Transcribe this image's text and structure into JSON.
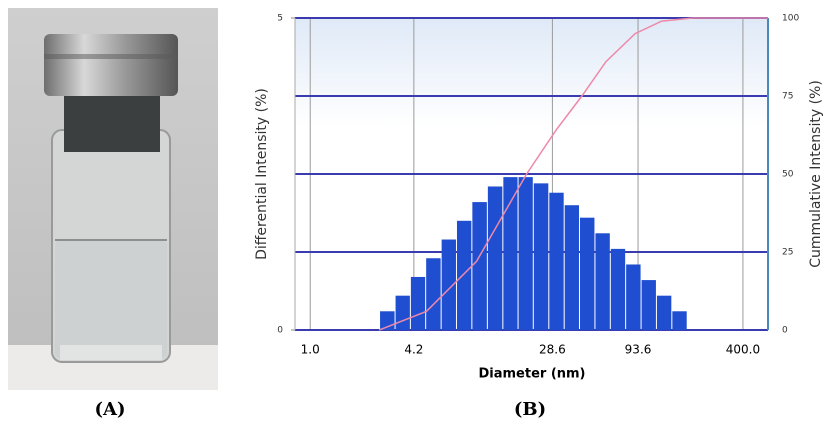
{
  "panel_labels": [
    "(A)",
    "(B)"
  ],
  "chart_data": {
    "type": "histogram",
    "xlabel": "Diameter (nm)",
    "ylabel": "Differential Intensity (%)",
    "y2label": "Cummulative Intensity (%)",
    "xscale": "log",
    "grid": true,
    "xlim": [
      0.81,
      566
    ],
    "xticks": [
      {
        "value": 1,
        "label": "1.0"
      },
      4.2,
      28.6,
      93.6,
      {
        "value": 400,
        "label": "400.0"
      }
    ],
    "ylim": [
      0,
      5
    ],
    "yticks": [
      0,
      5
    ],
    "y2lim": [
      0,
      100
    ],
    "y2ticks": [
      0,
      25,
      50,
      75,
      100
    ],
    "color": "#1f4fd0",
    "bins": [
      2.63,
      3.26,
      4.03,
      4.98,
      6.17,
      7.63,
      9.44,
      11.7,
      14.5,
      17.9,
      22.1,
      27.4,
      33.9,
      41.9,
      51.9,
      64.2,
      79.4,
      98.3,
      121.6,
      150.5,
      186.2
    ],
    "values": [
      0.3,
      0.55,
      0.85,
      1.15,
      1.45,
      1.75,
      2.05,
      2.3,
      2.45,
      2.45,
      2.35,
      2.2,
      2.0,
      1.8,
      1.55,
      1.3,
      1.05,
      0.8,
      0.55,
      0.3
    ],
    "line": {
      "x": [
        2.6,
        5,
        10,
        20,
        30,
        43,
        60,
        90,
        130,
        200,
        566
      ],
      "values": [
        0,
        6,
        22,
        50,
        64,
        75,
        86,
        95,
        99,
        100,
        100
      ],
      "color": "#ee88a8",
      "axis": "y2"
    }
  }
}
